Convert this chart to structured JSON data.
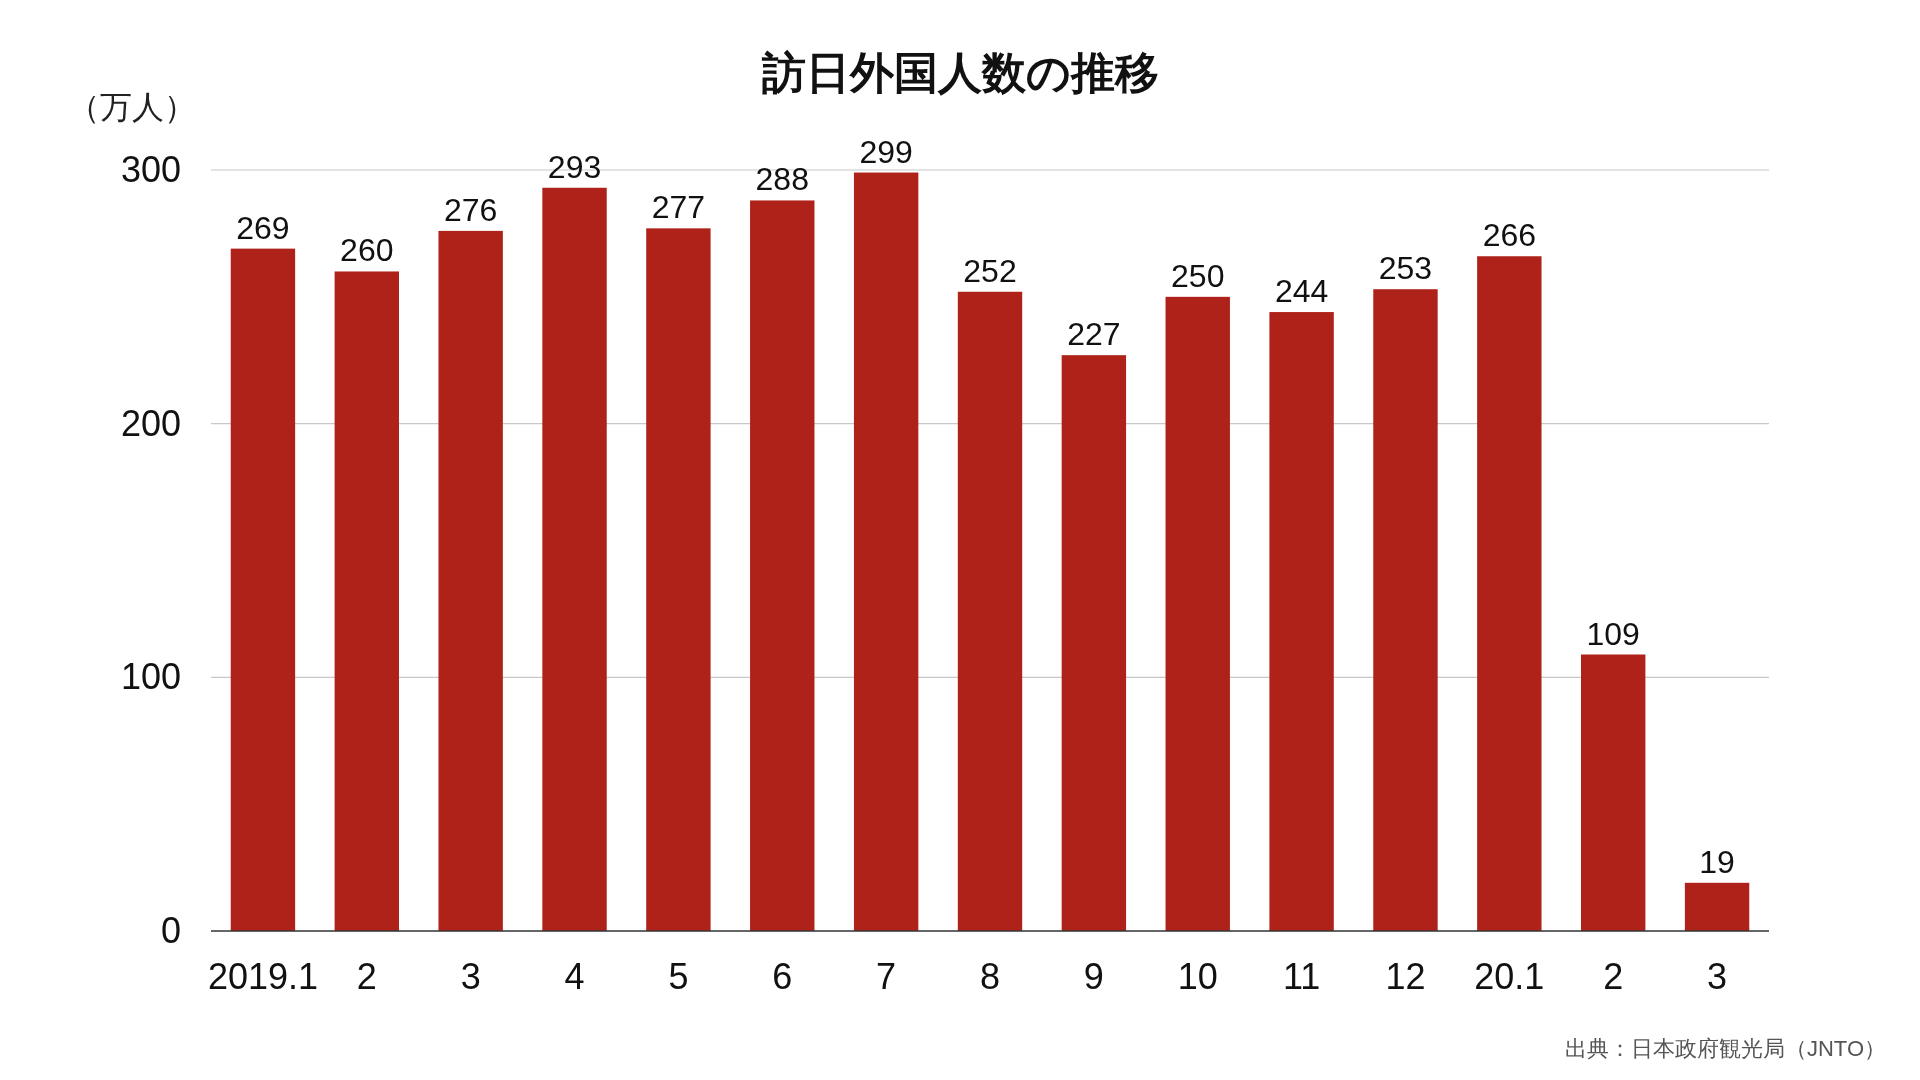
{
  "chart_data": {
    "type": "bar",
    "title": "訪日外国人数の推移",
    "ylabel": "（万人）",
    "categories": [
      "2019.1",
      "2",
      "3",
      "4",
      "5",
      "6",
      "7",
      "8",
      "9",
      "10",
      "11",
      "12",
      "20.1",
      "2",
      "3"
    ],
    "values": [
      269,
      260,
      276,
      293,
      277,
      288,
      299,
      252,
      227,
      250,
      244,
      253,
      266,
      109,
      19
    ],
    "color": "#ae2219",
    "ylim": [
      0,
      300
    ],
    "yticks": [
      0,
      100,
      200,
      300
    ],
    "grid": "y",
    "data_labels": true,
    "annotations": [
      "出典：日本政府観光局（JNTO）"
    ]
  }
}
